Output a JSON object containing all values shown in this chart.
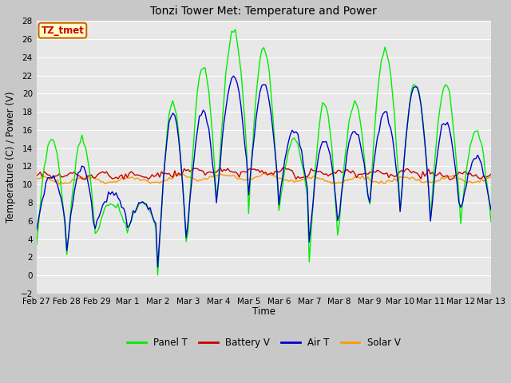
{
  "title": "Tonzi Tower Met: Temperature and Power",
  "xlabel": "Time",
  "ylabel": "Temperature (C) / Power (V)",
  "ylim": [
    -2,
    28
  ],
  "yticks": [
    -2,
    0,
    2,
    4,
    6,
    8,
    10,
    12,
    14,
    16,
    18,
    20,
    22,
    24,
    26,
    28
  ],
  "x_labels": [
    "Feb 27",
    "Feb 28",
    "Feb 29",
    "Mar 1",
    "Mar 2",
    "Mar 3",
    "Mar 4",
    "Mar 5",
    "Mar 6",
    "Mar 7",
    "Mar 8",
    "Mar 9",
    "Mar 10",
    "Mar 11",
    "Mar 12",
    "Mar 13"
  ],
  "annotation_text": "TZ_tmet",
  "annotation_bg": "#ffffcc",
  "annotation_border": "#cc0000",
  "colors": {
    "panel_t": "#00ee00",
    "battery_v": "#cc0000",
    "air_t": "#0000cc",
    "solar_v": "#ff9900"
  },
  "legend_labels": [
    "Panel T",
    "Battery V",
    "Air T",
    "Solar V"
  ],
  "plot_bg": "#e8e8e8",
  "fig_bg": "#c8c8c8",
  "grid_color": "#ffffff",
  "linewidth": 1.0,
  "figsize": [
    6.4,
    4.8
  ],
  "dpi": 100
}
